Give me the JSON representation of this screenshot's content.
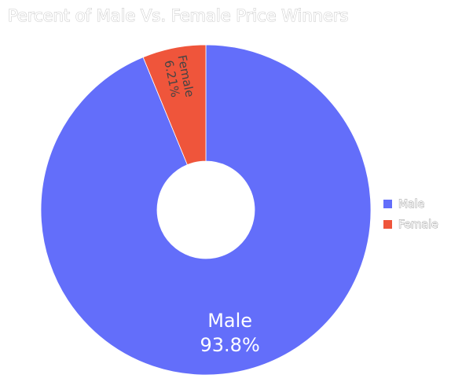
{
  "chart_data": {
    "type": "pie",
    "title": "Percent of Male Vs. Female Price Winners",
    "hole": true,
    "slices": [
      {
        "label": "Male",
        "percent_text": "93.8%",
        "value": 93.79,
        "color": "#636efa"
      },
      {
        "label": "Female",
        "percent_text": "6.21%",
        "value": 6.21,
        "color": "#ef553b"
      }
    ],
    "legend": {
      "placement": "right",
      "entries": [
        "Male",
        "Female"
      ]
    }
  }
}
